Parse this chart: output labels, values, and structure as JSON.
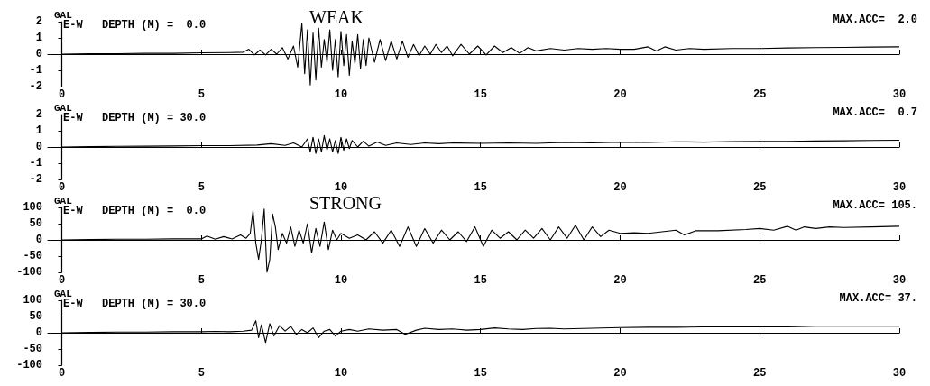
{
  "chart_data": [
    {
      "type": "line",
      "title": "WEAK",
      "ylabel": "GAL",
      "annotations": [
        "E-W",
        "DEPTH (M) =  0.0",
        "MAX.ACC=  2.0"
      ],
      "xlim": [
        -0.5,
        30
      ],
      "xticks": [
        0,
        5,
        10,
        15,
        20,
        25,
        30
      ],
      "ylim": [
        -2,
        2
      ],
      "yticks": [
        -2,
        -1,
        0,
        1,
        2
      ],
      "series": [
        {
          "color": "#000000",
          "x": [
            0,
            1,
            2,
            3,
            4,
            5,
            6,
            6.5,
            6.7,
            6.9,
            7.1,
            7.3,
            7.5,
            7.7,
            7.9,
            8.1,
            8.3,
            8.45,
            8.6,
            8.7,
            8.8,
            8.9,
            9.0,
            9.1,
            9.2,
            9.3,
            9.4,
            9.5,
            9.6,
            9.7,
            9.8,
            9.9,
            10.0,
            10.1,
            10.2,
            10.3,
            10.4,
            10.5,
            10.6,
            10.7,
            10.8,
            10.9,
            11.0,
            11.2,
            11.4,
            11.6,
            11.8,
            12.0,
            12.2,
            12.4,
            12.6,
            12.8,
            13.0,
            13.2,
            13.4,
            13.6,
            13.8,
            14.0,
            14.3,
            14.6,
            14.9,
            15.2,
            15.5,
            15.8,
            16.1,
            16.4,
            16.7,
            17.0,
            17.5,
            18,
            18.5,
            19,
            19.5,
            20,
            20.5,
            21,
            21.3,
            21.6,
            22,
            22.5,
            23,
            24,
            25,
            26,
            27,
            28,
            29,
            30
          ],
          "values": [
            0,
            0.02,
            0.03,
            0.05,
            0.05,
            0.08,
            0.1,
            0.12,
            0.3,
            -0.05,
            0.25,
            -0.05,
            0.3,
            0,
            0.4,
            -0.3,
            0.5,
            -0.8,
            1.9,
            -1.2,
            1.5,
            -1.9,
            1.3,
            -1.6,
            1.6,
            -0.8,
            0.9,
            -0.5,
            1.5,
            -1.0,
            0.9,
            -1.4,
            1.4,
            -0.7,
            1.2,
            -1.3,
            0.8,
            -0.6,
            1.2,
            -0.9,
            0.9,
            -0.7,
            1.0,
            -0.5,
            0.9,
            -0.4,
            0.8,
            -0.3,
            0.8,
            -0.2,
            0.6,
            -0.1,
            0.5,
            0,
            0.6,
            0.1,
            0.5,
            -0.1,
            0.6,
            0,
            0.5,
            -0.05,
            0.5,
            0.1,
            0.4,
            0.05,
            0.4,
            0.2,
            0.35,
            0.25,
            0.35,
            0.3,
            0.35,
            0.3,
            0.3,
            0.45,
            0.2,
            0.45,
            0.25,
            0.35,
            0.3,
            0.35,
            0.35,
            0.38,
            0.4,
            0.42,
            0.44,
            0.45
          ]
        }
      ]
    },
    {
      "type": "line",
      "ylabel": "GAL",
      "annotations": [
        "E-W",
        "DEPTH (M) = 30.0",
        "MAX.ACC=  0.7"
      ],
      "xlim": [
        -0.5,
        30
      ],
      "xticks": [
        0,
        5,
        10,
        15,
        20,
        25,
        30
      ],
      "ylim": [
        -2,
        2
      ],
      "yticks": [
        -2,
        -1,
        0,
        1,
        2
      ],
      "series": [
        {
          "color": "#000000",
          "x": [
            0,
            1,
            2,
            3,
            4,
            5,
            6,
            7,
            7.5,
            8,
            8.3,
            8.6,
            8.8,
            8.9,
            9.0,
            9.1,
            9.2,
            9.3,
            9.4,
            9.5,
            9.6,
            9.7,
            9.8,
            9.9,
            10.0,
            10.1,
            10.2,
            10.3,
            10.4,
            10.6,
            10.8,
            11.0,
            11.3,
            11.6,
            12,
            12.5,
            13,
            13.5,
            14,
            15,
            16,
            17,
            18,
            19,
            20,
            21,
            22,
            23,
            24,
            25,
            26,
            27,
            28,
            29,
            30
          ],
          "values": [
            0,
            0.02,
            0.04,
            0.05,
            0.06,
            0.08,
            0.08,
            0.12,
            0.2,
            0.1,
            0.25,
            0,
            0.5,
            -0.3,
            0.6,
            -0.4,
            0.5,
            -0.3,
            0.7,
            -0.2,
            0.5,
            -0.3,
            0.4,
            -0.4,
            0.6,
            -0.2,
            0.5,
            -0.1,
            0.4,
            0,
            0.35,
            0.05,
            0.3,
            0.1,
            0.25,
            0.15,
            0.25,
            0.2,
            0.25,
            0.22,
            0.25,
            0.22,
            0.28,
            0.25,
            0.3,
            0.28,
            0.32,
            0.3,
            0.33,
            0.35,
            0.35,
            0.37,
            0.38,
            0.4,
            0.42
          ]
        }
      ]
    },
    {
      "type": "line",
      "title": "STRONG",
      "ylabel": "GAL",
      "annotations": [
        "E-W",
        "DEPTH (M) =  0.0",
        "MAX.ACC= 105."
      ],
      "xlim": [
        -0.5,
        30
      ],
      "xticks": [
        0,
        5,
        10,
        15,
        20,
        25,
        30
      ],
      "ylim": [
        -100,
        100
      ],
      "yticks": [
        -100,
        -50,
        0,
        50,
        100
      ],
      "series": [
        {
          "color": "#000000",
          "x": [
            0,
            1,
            2,
            3,
            4,
            5,
            5.2,
            5.5,
            5.8,
            6.1,
            6.4,
            6.6,
            6.75,
            6.85,
            6.95,
            7.05,
            7.15,
            7.25,
            7.35,
            7.45,
            7.55,
            7.65,
            7.75,
            7.9,
            8.05,
            8.2,
            8.35,
            8.5,
            8.65,
            8.8,
            8.95,
            9.1,
            9.25,
            9.4,
            9.55,
            9.7,
            9.85,
            10,
            10.3,
            10.6,
            10.9,
            11.2,
            11.5,
            11.8,
            12.1,
            12.4,
            12.7,
            13,
            13.3,
            13.6,
            13.9,
            14.2,
            14.5,
            14.8,
            15.1,
            15.4,
            15.7,
            16,
            16.3,
            16.6,
            16.9,
            17.2,
            17.5,
            17.8,
            18.1,
            18.4,
            18.7,
            19,
            19.3,
            19.6,
            20,
            20.5,
            21,
            21.5,
            22,
            22.3,
            22.7,
            23.5,
            24.5,
            25,
            25.5,
            26,
            26.3,
            26.6,
            27,
            27.5,
            28,
            29,
            30
          ],
          "values": [
            0,
            1,
            2,
            2,
            3,
            3,
            12,
            2,
            10,
            3,
            15,
            5,
            20,
            90,
            -10,
            -60,
            0,
            95,
            -100,
            -60,
            80,
            40,
            -30,
            20,
            -10,
            40,
            -20,
            30,
            -10,
            50,
            -40,
            35,
            -20,
            55,
            -30,
            30,
            0,
            20,
            5,
            15,
            0,
            25,
            -10,
            30,
            -20,
            40,
            -20,
            35,
            -10,
            30,
            0,
            25,
            -5,
            40,
            -20,
            30,
            5,
            25,
            0,
            30,
            5,
            35,
            0,
            40,
            5,
            45,
            0,
            40,
            10,
            30,
            20,
            22,
            20,
            25,
            30,
            15,
            28,
            28,
            32,
            35,
            30,
            42,
            30,
            40,
            35,
            40,
            38,
            40,
            42
          ]
        }
      ]
    },
    {
      "type": "line",
      "ylabel": "GAL",
      "annotations": [
        "E-W",
        "DEPTH (M) = 30.0",
        "MAX.ACC= 37."
      ],
      "xlim": [
        -0.5,
        30
      ],
      "xticks": [
        0,
        5,
        10,
        15,
        20,
        25,
        30
      ],
      "ylim": [
        -100,
        100
      ],
      "yticks": [
        -100,
        -50,
        0,
        50,
        100
      ],
      "series": [
        {
          "color": "#000000",
          "x": [
            0,
            1,
            2,
            3,
            4,
            5,
            5.5,
            6,
            6.5,
            6.8,
            6.95,
            7.05,
            7.15,
            7.3,
            7.45,
            7.6,
            7.8,
            8.0,
            8.2,
            8.4,
            8.6,
            8.8,
            9.0,
            9.2,
            9.4,
            9.6,
            9.8,
            10,
            10.3,
            10.6,
            11,
            11.5,
            12,
            12.3,
            12.7,
            13,
            13.5,
            14,
            14.5,
            15,
            15.5,
            16,
            16.5,
            17,
            17.5,
            18,
            19,
            20,
            21,
            22,
            23,
            24,
            25,
            26,
            27,
            28,
            29,
            30
          ],
          "values": [
            0,
            1,
            2,
            2,
            3,
            3,
            4,
            3,
            5,
            8,
            37,
            -15,
            25,
            -30,
            28,
            -10,
            22,
            5,
            20,
            -5,
            10,
            0,
            15,
            -15,
            5,
            10,
            -10,
            5,
            10,
            5,
            12,
            8,
            10,
            -5,
            8,
            14,
            10,
            12,
            8,
            10,
            15,
            12,
            10,
            13,
            14,
            12,
            14,
            16,
            17,
            17,
            18,
            18,
            18,
            18,
            20,
            20,
            20,
            20
          ]
        }
      ]
    }
  ]
}
